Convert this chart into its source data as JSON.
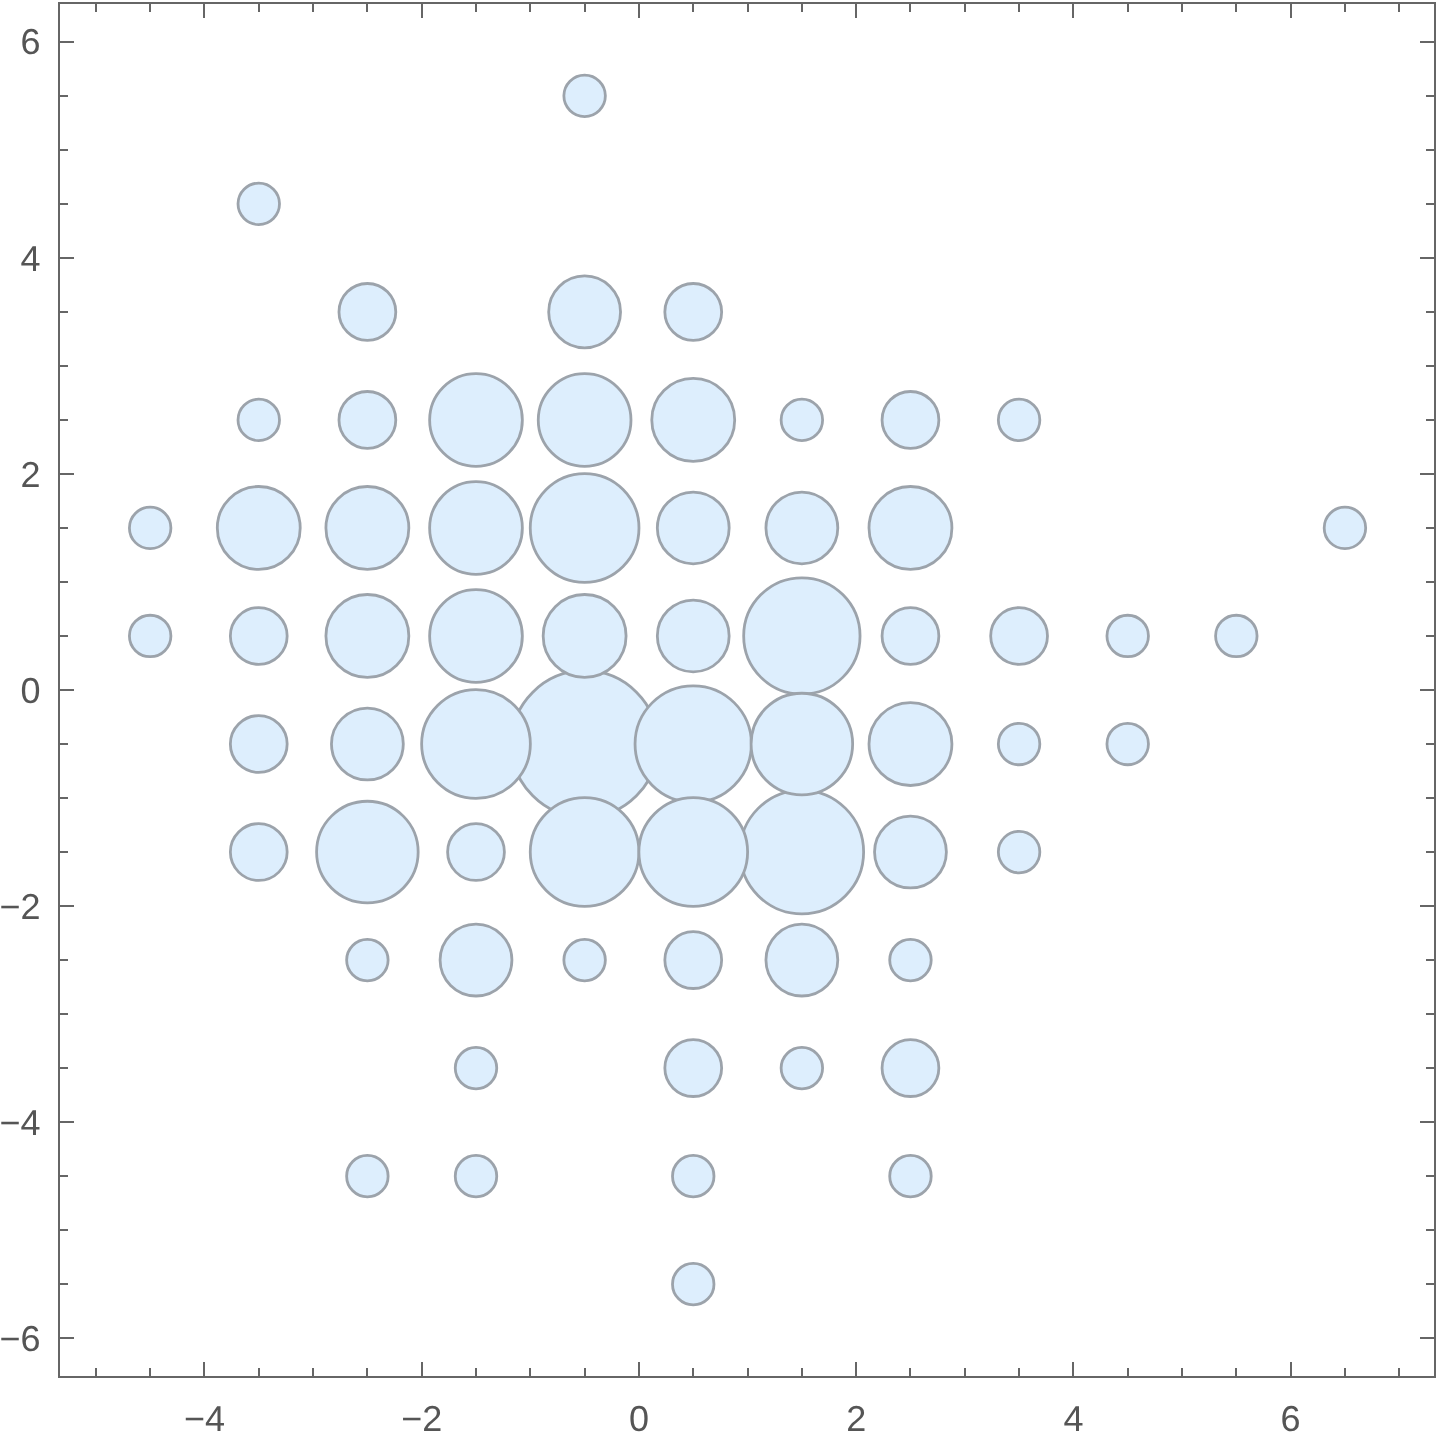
{
  "chart_data": {
    "type": "bubble",
    "x": [
      -0.5,
      1.5,
      0.5,
      1.5,
      -0.5,
      -1.5,
      -0.5,
      0.5,
      -2.5,
      1.5,
      -1.5,
      -0.5,
      -1.5,
      -1.5,
      0.5,
      -3.5,
      -2.5,
      2.5,
      -2.5,
      -0.5,
      2.5,
      -0.5,
      0.5,
      1.5,
      0.5,
      -2.5,
      2.5,
      -1.5,
      1.5,
      -2.5,
      0.5,
      -2.5,
      2.5,
      -3.5,
      2.5,
      3.5,
      -3.5,
      -3.5,
      -1.5,
      0.5,
      0.5,
      2.5,
      -0.5,
      -3.5,
      -3.5,
      1.5,
      3.5,
      -4.5,
      6.5,
      -4.5,
      4.5,
      5.5,
      3.5,
      4.5,
      3.5,
      -2.5,
      -0.5,
      2.5,
      -1.5,
      1.5,
      -2.5,
      -1.5,
      0.5,
      2.5,
      0.5
    ],
    "values": [
      -0.5,
      -1.5,
      -0.5,
      0.5,
      1.5,
      -0.5,
      -1.5,
      -1.5,
      -1.5,
      -0.5,
      2.5,
      2.5,
      1.5,
      0.5,
      2.5,
      1.5,
      1.5,
      1.5,
      0.5,
      0.5,
      -0.5,
      3.5,
      1.5,
      1.5,
      0.5,
      -0.5,
      -1.5,
      -2.5,
      -2.5,
      3.5,
      3.5,
      2.5,
      2.5,
      0.5,
      0.5,
      0.5,
      -0.5,
      -1.5,
      -1.5,
      -2.5,
      -3.5,
      -3.5,
      5.5,
      4.5,
      2.5,
      2.5,
      2.5,
      1.5,
      1.5,
      0.5,
      0.5,
      0.5,
      -0.5,
      -0.5,
      -1.5,
      -2.5,
      -2.5,
      -2.5,
      -3.5,
      -3.5,
      -4.5,
      -4.5,
      -4.5,
      -4.5,
      -5.5
    ],
    "sizes": [
      1,
      0.71,
      0.63,
      0.63,
      0.55,
      0.55,
      0.55,
      0.55,
      0.48,
      0.48,
      0.4,
      0.4,
      0.4,
      0.4,
      0.32,
      0.32,
      0.32,
      0.32,
      0.32,
      0.32,
      0.32,
      0.24,
      0.24,
      0.24,
      0.24,
      0.24,
      0.24,
      0.24,
      0.24,
      0.15,
      0.15,
      0.15,
      0.15,
      0.15,
      0.15,
      0.15,
      0.15,
      0.15,
      0.15,
      0.15,
      0.15,
      0.15,
      0.08,
      0.08,
      0.08,
      0.08,
      0.08,
      0.08,
      0.08,
      0.08,
      0.08,
      0.08,
      0.08,
      0.08,
      0.08,
      0.08,
      0.08,
      0.08,
      0.08,
      0.08,
      0.08,
      0.08,
      0.08,
      0.08,
      0.08
    ],
    "color": "#ddeefd",
    "xlim": [
      -5.33,
      7.32
    ],
    "ylim": [
      -6.35,
      6.35
    ],
    "xticks": [
      {
        "value": -5,
        "label": null
      },
      {
        "value": -4.5,
        "label": null
      },
      -4,
      {
        "value": -3.5,
        "label": null
      },
      {
        "value": -3,
        "label": null
      },
      {
        "value": -2.5,
        "label": null
      },
      -2,
      {
        "value": -1.5,
        "label": null
      },
      {
        "value": -1,
        "label": null
      },
      {
        "value": -0.5,
        "label": null
      },
      0,
      {
        "value": 0.5,
        "label": null
      },
      {
        "value": 1,
        "label": null
      },
      {
        "value": 1.5,
        "label": null
      },
      2,
      {
        "value": 2.5,
        "label": null
      },
      {
        "value": 3,
        "label": null
      },
      {
        "value": 3.5,
        "label": null
      },
      4,
      {
        "value": 4.5,
        "label": null
      },
      {
        "value": 5,
        "label": null
      },
      {
        "value": 5.5,
        "label": null
      },
      6,
      {
        "value": 6.5,
        "label": null
      },
      {
        "value": 7,
        "label": null
      }
    ],
    "yticks": [
      -6,
      {
        "value": -5.5,
        "label": null
      },
      {
        "value": -5,
        "label": null
      },
      {
        "value": -4.5,
        "label": null
      },
      -4,
      {
        "value": -3.5,
        "label": null
      },
      {
        "value": -3,
        "label": null
      },
      {
        "value": -2.5,
        "label": null
      },
      -2,
      {
        "value": -1.5,
        "label": null
      },
      {
        "value": -1,
        "label": null
      },
      {
        "value": -0.5,
        "label": null
      },
      0,
      {
        "value": 0.5,
        "label": null
      },
      {
        "value": 1,
        "label": null
      },
      {
        "value": 1.5,
        "label": null
      },
      2,
      {
        "value": 2.5,
        "label": null
      },
      {
        "value": 3,
        "label": null
      },
      {
        "value": 3.5,
        "label": null
      },
      4,
      {
        "value": 4.5,
        "label": null
      },
      {
        "value": 5,
        "label": null
      },
      {
        "value": 5.5,
        "label": null
      },
      6
    ]
  }
}
